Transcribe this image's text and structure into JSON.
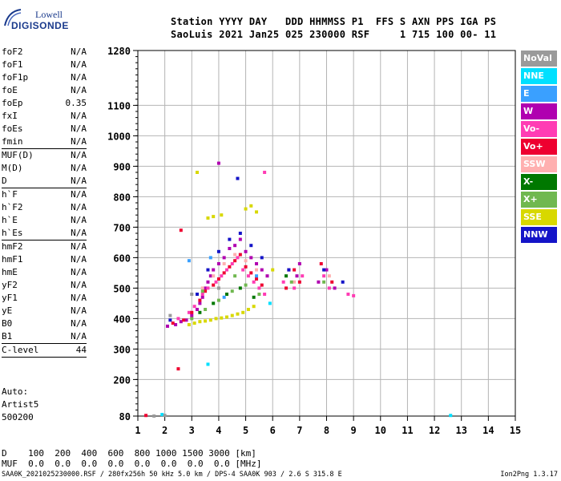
{
  "logo": {
    "line1": "Lowell",
    "line2": "DIGISONDE"
  },
  "header": {
    "line1": "Station YYYY DAY   DDD HHMMSS P1  FFS S AXN PPS IGA PS",
    "line2": "SaoLuis 2021 Jan25 025 230000 RSF     1 715 100 00- 11"
  },
  "params": [
    {
      "name": "foF2",
      "value": "N/A"
    },
    {
      "name": "foF1",
      "value": "N/A"
    },
    {
      "name": "foF1p",
      "value": "N/A"
    },
    {
      "name": "foE",
      "value": "N/A"
    },
    {
      "name": "foEp",
      "value": "0.35"
    },
    {
      "name": "fxI",
      "value": "N/A"
    },
    {
      "name": "foEs",
      "value": "N/A"
    },
    {
      "name": "fmin",
      "value": "N/A"
    },
    {
      "sep": true
    },
    {
      "name": "MUF(D)",
      "value": "N/A"
    },
    {
      "name": "M(D)",
      "value": "N/A"
    },
    {
      "name": "D",
      "value": "N/A"
    },
    {
      "sep": true
    },
    {
      "name": "h`F",
      "value": "N/A"
    },
    {
      "name": "h`F2",
      "value": "N/A"
    },
    {
      "name": "h`E",
      "value": "N/A"
    },
    {
      "name": "h`Es",
      "value": "N/A"
    },
    {
      "sep": true
    },
    {
      "name": "hmF2",
      "value": "N/A"
    },
    {
      "name": "hmF1",
      "value": "N/A"
    },
    {
      "name": "hmE",
      "value": "N/A"
    },
    {
      "name": "yF2",
      "value": "N/A"
    },
    {
      "name": "yF1",
      "value": "N/A"
    },
    {
      "name": "yE",
      "value": "N/A"
    },
    {
      "name": "B0",
      "value": "N/A"
    },
    {
      "name": "B1",
      "value": "N/A"
    },
    {
      "sep": true
    },
    {
      "name": "C-level",
      "value": "44"
    },
    {
      "sep": true
    }
  ],
  "autoscale": [
    "Auto:",
    "Artist5",
    "500200"
  ],
  "legend": [
    {
      "label": "NoVal",
      "color": "#9a9a9a"
    },
    {
      "label": "NNE",
      "color": "#00e0ff"
    },
    {
      "label": "E",
      "color": "#3aa0ff"
    },
    {
      "label": "W",
      "color": "#b000b0"
    },
    {
      "label": "Vo-",
      "color": "#ff3cb4"
    },
    {
      "label": "Vo+",
      "color": "#ee0030"
    },
    {
      "label": "SSW",
      "color": "#ffb0b0"
    },
    {
      "label": "X-",
      "color": "#007800"
    },
    {
      "label": "X+",
      "color": "#70b850"
    },
    {
      "label": "SSE",
      "color": "#d8d800"
    },
    {
      "label": "NNW",
      "color": "#1414c8"
    }
  ],
  "bottom": {
    "d_line": "D    100  200  400  600  800 1000 1500 3000 [km]",
    "muf_line": "MUF  0.0  0.0  0.0  0.0  0.0  0.0  0.0  0.0 [MHz]"
  },
  "footer": {
    "info": "SAA0K_2021025230000.RSF / 280fx256h 50 kHz 5.0 km / DPS-4 SAA0K 903 / 2.6 S 315.8 E",
    "version": "Ion2Png 1.3.17"
  },
  "chart_data": {
    "type": "scatter",
    "title": "",
    "xlabel": "",
    "ylabel": "",
    "xlim": [
      1,
      15
    ],
    "ylim": [
      80,
      1280
    ],
    "x_ticks": [
      1,
      2,
      3,
      4,
      5,
      6,
      7,
      8,
      9,
      10,
      11,
      12,
      13,
      14,
      15
    ],
    "y_ticks": [
      80,
      200,
      300,
      400,
      500,
      600,
      700,
      800,
      900,
      1000,
      1100,
      1280
    ],
    "grid": true,
    "series": [
      {
        "name": "W",
        "color": "#b000b0",
        "points": [
          [
            2.1,
            375
          ],
          [
            2.4,
            380
          ],
          [
            2.6,
            390
          ],
          [
            2.8,
            395
          ],
          [
            3.0,
            410
          ],
          [
            3.2,
            430
          ],
          [
            3.3,
            450
          ],
          [
            3.4,
            470
          ],
          [
            3.5,
            500
          ],
          [
            3.6,
            520
          ],
          [
            3.7,
            540
          ],
          [
            3.8,
            560
          ],
          [
            4.0,
            580
          ],
          [
            4.2,
            600
          ],
          [
            4.4,
            630
          ],
          [
            4.6,
            640
          ],
          [
            4.8,
            660
          ],
          [
            5.0,
            620
          ],
          [
            5.2,
            600
          ],
          [
            5.4,
            580
          ],
          [
            5.6,
            560
          ],
          [
            5.8,
            540
          ],
          [
            6.6,
            560
          ],
          [
            6.9,
            540
          ],
          [
            7.0,
            580
          ],
          [
            7.7,
            520
          ],
          [
            8.0,
            560
          ],
          [
            8.3,
            500
          ],
          [
            4.0,
            910
          ]
        ]
      },
      {
        "name": "Vo-",
        "color": "#ff3cb4",
        "points": [
          [
            2.5,
            400
          ],
          [
            2.9,
            420
          ],
          [
            3.1,
            440
          ],
          [
            3.4,
            480
          ],
          [
            3.6,
            500
          ],
          [
            3.9,
            520
          ],
          [
            4.1,
            540
          ],
          [
            4.3,
            560
          ],
          [
            4.5,
            580
          ],
          [
            4.7,
            600
          ],
          [
            4.9,
            560
          ],
          [
            5.1,
            540
          ],
          [
            5.3,
            520
          ],
          [
            5.5,
            500
          ],
          [
            5.7,
            480
          ],
          [
            6.4,
            520
          ],
          [
            6.8,
            500
          ],
          [
            7.1,
            540
          ],
          [
            7.9,
            540
          ],
          [
            8.1,
            500
          ],
          [
            8.8,
            480
          ],
          [
            9.0,
            475
          ],
          [
            5.7,
            880
          ]
        ]
      },
      {
        "name": "Vo+",
        "color": "#ee0030",
        "points": [
          [
            2.3,
            385
          ],
          [
            2.7,
            395
          ],
          [
            3.0,
            420
          ],
          [
            3.3,
            460
          ],
          [
            3.5,
            490
          ],
          [
            3.8,
            510
          ],
          [
            4.0,
            530
          ],
          [
            4.2,
            550
          ],
          [
            4.4,
            570
          ],
          [
            4.6,
            590
          ],
          [
            4.8,
            610
          ],
          [
            5.0,
            570
          ],
          [
            5.2,
            550
          ],
          [
            5.4,
            530
          ],
          [
            5.6,
            510
          ],
          [
            6.5,
            500
          ],
          [
            6.8,
            560
          ],
          [
            7.0,
            520
          ],
          [
            7.8,
            580
          ],
          [
            8.2,
            520
          ],
          [
            2.6,
            690
          ],
          [
            2.5,
            235
          ],
          [
            1.3,
            82
          ]
        ]
      },
      {
        "name": "SSE",
        "color": "#d8d800",
        "points": [
          [
            2.9,
            380
          ],
          [
            3.1,
            385
          ],
          [
            3.3,
            390
          ],
          [
            3.5,
            392
          ],
          [
            3.7,
            395
          ],
          [
            3.9,
            400
          ],
          [
            4.1,
            402
          ],
          [
            4.3,
            405
          ],
          [
            4.5,
            410
          ],
          [
            4.7,
            415
          ],
          [
            4.9,
            420
          ],
          [
            5.1,
            430
          ],
          [
            5.3,
            440
          ],
          [
            3.6,
            730
          ],
          [
            3.8,
            735
          ],
          [
            4.1,
            740
          ],
          [
            5.0,
            760
          ],
          [
            5.2,
            770
          ],
          [
            5.4,
            750
          ],
          [
            6.0,
            560
          ],
          [
            3.2,
            880
          ]
        ]
      },
      {
        "name": "NNW",
        "color": "#1414c8",
        "points": [
          [
            3.2,
            480
          ],
          [
            3.6,
            560
          ],
          [
            4.0,
            620
          ],
          [
            4.4,
            660
          ],
          [
            4.8,
            680
          ],
          [
            5.2,
            640
          ],
          [
            5.6,
            600
          ],
          [
            6.6,
            560
          ],
          [
            7.9,
            560
          ],
          [
            8.6,
            520
          ],
          [
            4.7,
            860
          ],
          [
            2.2,
            395
          ]
        ]
      },
      {
        "name": "SSW",
        "color": "#ffb0b0",
        "points": [
          [
            3.4,
            500
          ],
          [
            3.8,
            540
          ],
          [
            4.2,
            580
          ],
          [
            4.6,
            610
          ],
          [
            5.0,
            590
          ],
          [
            5.4,
            560
          ],
          [
            6.8,
            520
          ],
          [
            8.1,
            540
          ]
        ]
      },
      {
        "name": "X+",
        "color": "#70b850",
        "points": [
          [
            3.0,
            400
          ],
          [
            3.5,
            430
          ],
          [
            4.0,
            460
          ],
          [
            4.5,
            490
          ],
          [
            5.0,
            510
          ],
          [
            5.5,
            480
          ],
          [
            3.4,
            490
          ],
          [
            4.6,
            540
          ],
          [
            6.7,
            520
          ],
          [
            7.9,
            520
          ]
        ]
      },
      {
        "name": "X-",
        "color": "#007800",
        "points": [
          [
            3.3,
            420
          ],
          [
            3.8,
            450
          ],
          [
            4.3,
            480
          ],
          [
            4.8,
            500
          ],
          [
            5.3,
            470
          ],
          [
            6.5,
            540
          ]
        ]
      },
      {
        "name": "E",
        "color": "#3aa0ff",
        "points": [
          [
            2.9,
            590
          ],
          [
            3.7,
            600
          ],
          [
            4.2,
            470
          ],
          [
            5.4,
            540
          ]
        ]
      },
      {
        "name": "NNE",
        "color": "#00e0ff",
        "points": [
          [
            3.6,
            250
          ],
          [
            12.6,
            82
          ],
          [
            1.9,
            85
          ],
          [
            5.9,
            450
          ]
        ]
      },
      {
        "name": "NoVal",
        "color": "#9a9a9a",
        "points": [
          [
            1.6,
            80
          ],
          [
            2.0,
            82
          ],
          [
            2.2,
            410
          ],
          [
            3.0,
            480
          ],
          [
            4.0,
            500
          ]
        ]
      }
    ]
  }
}
